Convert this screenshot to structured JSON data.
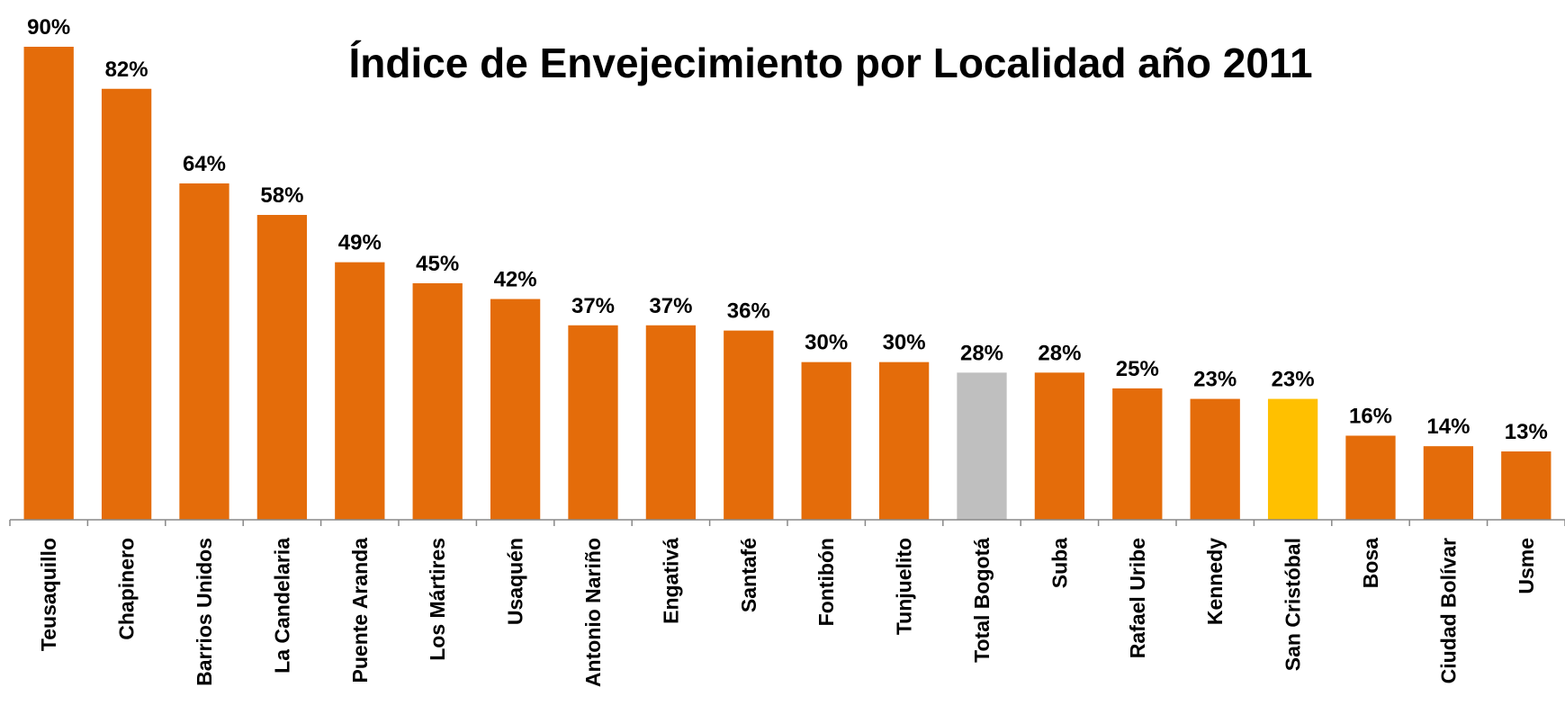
{
  "chart_data": {
    "type": "bar",
    "title": "Índice de Envejecimiento por Localidad año 2011",
    "categories": [
      "Teusaquillo",
      "Chapinero",
      "Barrios Unidos",
      "La Candelaria",
      "Puente Aranda",
      "Los Mártires",
      "Usaquén",
      "Antonio Nariño",
      "Engativá",
      "Santafé",
      "Fontibón",
      "Tunjuelito",
      "Total Bogotá",
      "Suba",
      "Rafael Uribe",
      "Kennedy",
      "San Cristóbal",
      "Bosa",
      "Ciudad Bolívar",
      "Usme"
    ],
    "values": [
      90,
      82,
      64,
      58,
      49,
      45,
      42,
      37,
      37,
      36,
      30,
      30,
      28,
      28,
      25,
      23,
      23,
      16,
      14,
      13
    ],
    "value_labels": [
      "90%",
      "82%",
      "64%",
      "58%",
      "49%",
      "45%",
      "42%",
      "37%",
      "37%",
      "36%",
      "30%",
      "30%",
      "28%",
      "28%",
      "25%",
      "23%",
      "23%",
      "16%",
      "14%",
      "13%"
    ],
    "colors": [
      "#e46c0a",
      "#e46c0a",
      "#e46c0a",
      "#e46c0a",
      "#e46c0a",
      "#e46c0a",
      "#e46c0a",
      "#e46c0a",
      "#e46c0a",
      "#e46c0a",
      "#e46c0a",
      "#e46c0a",
      "#bfbfbf",
      "#e46c0a",
      "#e46c0a",
      "#e46c0a",
      "#ffc000",
      "#e46c0a",
      "#e46c0a",
      "#e46c0a"
    ]
  }
}
